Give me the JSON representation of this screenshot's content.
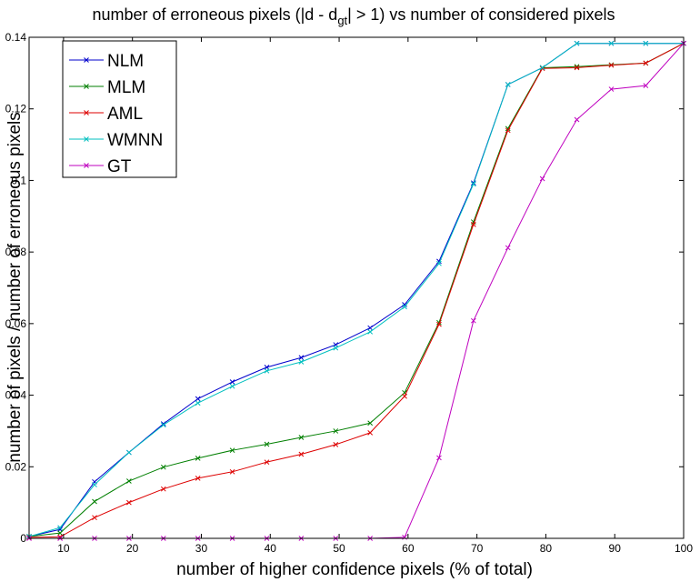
{
  "chart_data": {
    "type": "line",
    "title": {
      "prefix": "number of erroneous pixels (|d - d",
      "subscript": "gt",
      "suffix": "| > 1) vs number of considered pixels"
    },
    "xlabel": "number of higher confidence pixels (% of total)",
    "ylabel": "number of pixels / number of erroneous pixels",
    "xlim": [
      5,
      100
    ],
    "ylim": [
      0,
      0.14
    ],
    "xticks": [
      10,
      20,
      30,
      40,
      50,
      60,
      70,
      80,
      90,
      100
    ],
    "xtick_labels": [
      "10",
      "20",
      "30",
      "40",
      "50",
      "60",
      "70",
      "80",
      "90",
      "100"
    ],
    "yticks": [
      0,
      0.02,
      0.04,
      0.06,
      0.08,
      0.1,
      0.12,
      0.14
    ],
    "ytick_labels": [
      "0",
      "0.02",
      "0.04",
      "0.06",
      "0.08",
      "0.1",
      "0.12",
      "0.14"
    ],
    "grid": false,
    "legend_position": "top-left",
    "marker": "x",
    "x": [
      5,
      9.5,
      14.5,
      19.5,
      24.5,
      29.5,
      34.5,
      39.5,
      44.5,
      49.5,
      54.5,
      59.5,
      64.5,
      69.5,
      74.5,
      79.5,
      84.5,
      89.5,
      94.5,
      100
    ],
    "series": [
      {
        "name": "NLM",
        "color": "#0000cc",
        "values": [
          0.0005,
          0.0025,
          0.0158,
          0.024,
          0.032,
          0.039,
          0.0437,
          0.0478,
          0.0505,
          0.0541,
          0.0588,
          0.0653,
          0.0774,
          0.0993,
          0.1268,
          0.1315,
          0.1383,
          0.1383,
          0.1383,
          0.1383
        ]
      },
      {
        "name": "MLM",
        "color": "#007f00",
        "values": [
          0.0005,
          0.0015,
          0.0103,
          0.016,
          0.0199,
          0.0224,
          0.0246,
          0.0263,
          0.0282,
          0.03,
          0.0322,
          0.0407,
          0.0603,
          0.0884,
          0.1145,
          0.1315,
          0.1318,
          0.1323,
          0.1328,
          0.1383
        ]
      },
      {
        "name": "AML",
        "color": "#dd0000",
        "values": [
          0.0003,
          0.0004,
          0.0058,
          0.01,
          0.0138,
          0.0168,
          0.0186,
          0.0213,
          0.0235,
          0.0262,
          0.0295,
          0.0397,
          0.0598,
          0.0877,
          0.114,
          0.1313,
          0.1315,
          0.1322,
          0.1328,
          0.1383
        ]
      },
      {
        "name": "WMNN",
        "color": "#00bfbf",
        "values": [
          0.0005,
          0.003,
          0.015,
          0.024,
          0.0317,
          0.0378,
          0.0425,
          0.0468,
          0.0493,
          0.0532,
          0.0577,
          0.0647,
          0.0768,
          0.099,
          0.1268,
          0.1315,
          0.1383,
          0.1383,
          0.1383,
          0.1383
        ]
      },
      {
        "name": "GT",
        "color": "#bf00bf",
        "values": [
          0,
          0,
          0,
          0,
          0,
          0,
          0,
          0,
          0,
          0,
          0,
          0.0003,
          0.0225,
          0.0608,
          0.0812,
          0.1005,
          0.117,
          0.1255,
          0.1265,
          0.1383
        ]
      }
    ]
  }
}
